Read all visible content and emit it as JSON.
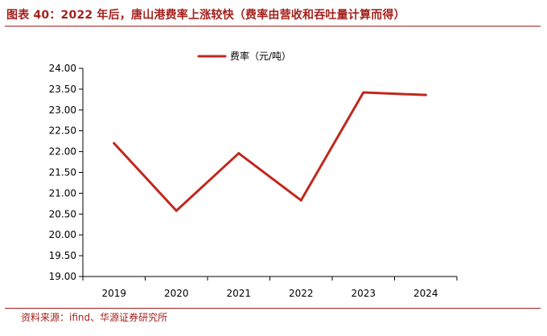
{
  "figure": {
    "title": "图表 40：2022 年后，唐山港费率上涨较快（费率由营收和吞吐量计算而得）",
    "source": "资料来源：ifind、华源证券研究所"
  },
  "chart_data": {
    "type": "line",
    "x": [
      "2019",
      "2020",
      "2021",
      "2022",
      "2023",
      "2024"
    ],
    "series": [
      {
        "name": "费率（元/吨）",
        "values": [
          22.2,
          20.58,
          21.96,
          20.83,
          23.42,
          23.36
        ],
        "color": "#c0281e"
      }
    ],
    "ylim": [
      19.0,
      24.0
    ],
    "yticks": [
      "19.00",
      "19.50",
      "20.00",
      "20.50",
      "21.00",
      "21.50",
      "22.00",
      "22.50",
      "23.00",
      "23.50",
      "24.00"
    ],
    "grid": false,
    "legend": "top-center",
    "xlabel": "",
    "ylabel": ""
  }
}
